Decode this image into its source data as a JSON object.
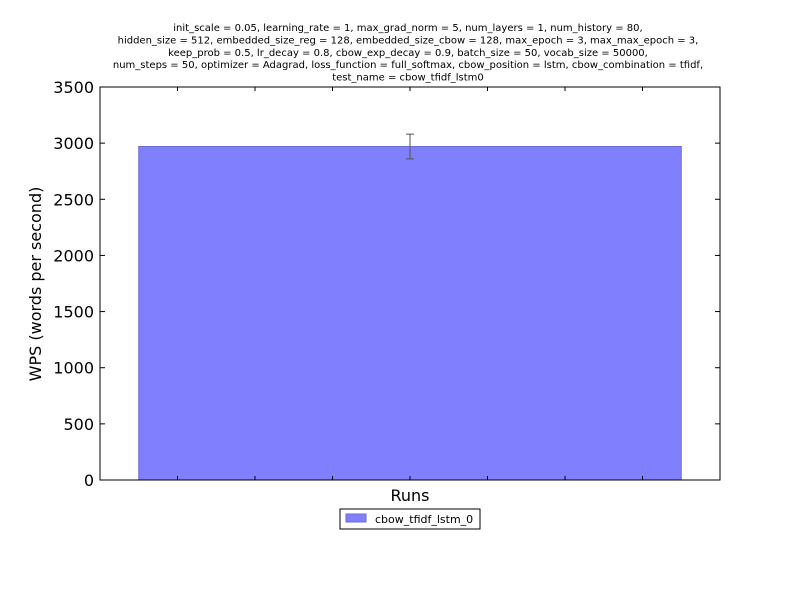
{
  "chart_data": {
    "type": "bar",
    "title_lines": [
      "init_scale = 0.05, learning_rate = 1, max_grad_norm = 5, num_layers = 1, num_history = 80,",
      "hidden_size = 512, embedded_size_reg = 128, embedded_size_cbow = 128, max_epoch = 3, max_max_epoch = 3,",
      "keep_prob = 0.5, lr_decay = 0.8, cbow_exp_decay = 0.9, batch_size = 50, vocab_size = 50000,",
      "num_steps = 50, optimizer = Adagrad, loss_function = full_softmax, cbow_position = lstm, cbow_combination = tfidf,",
      "test_name = cbow_tfidf_lstm0"
    ],
    "xlabel": "Runs",
    "ylabel": "WPS (words per second)",
    "ylim": [
      0,
      3500
    ],
    "yticks": [
      0,
      500,
      1000,
      1500,
      2000,
      2500,
      3000,
      3500
    ],
    "xlim": [
      0,
      8
    ],
    "x_minor_ticks": [
      1,
      2,
      3,
      4,
      5,
      6,
      7
    ],
    "grid": false,
    "legend_position": "bottom-center",
    "series": [
      {
        "name": "cbow_tfidf_lstm_0",
        "x_start": 0.5,
        "x_end": 7.5,
        "x_center": 4,
        "value": 2970,
        "error": 110,
        "color": "#8080ff",
        "edge_color": "#6a6ad8"
      }
    ]
  }
}
